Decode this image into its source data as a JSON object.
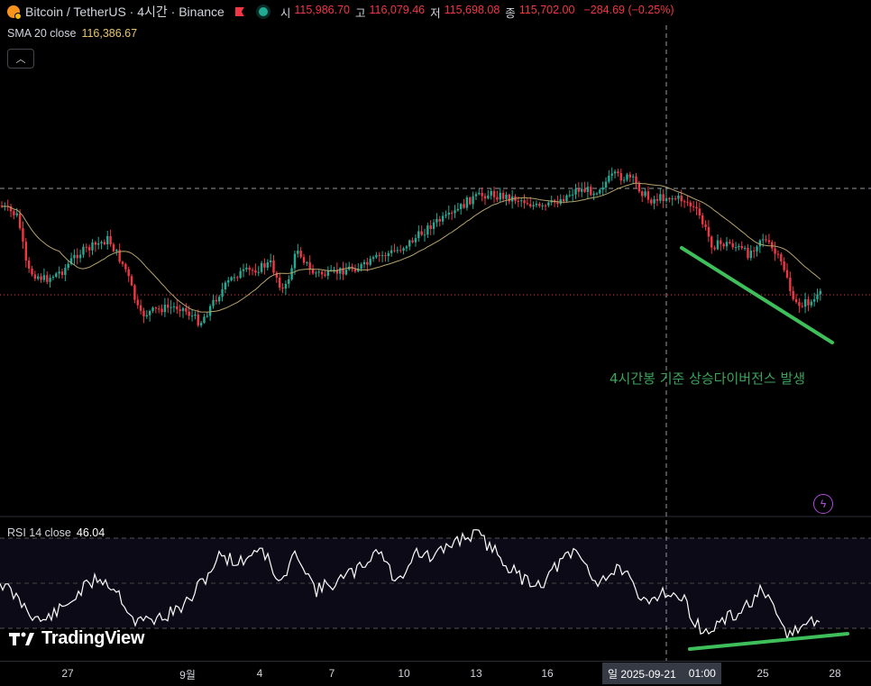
{
  "header": {
    "symbol": "Bitcoin / TetherUS · 4시간 · Binance",
    "ohlc": [
      {
        "key": "시",
        "value": "115,986.70"
      },
      {
        "key": "고",
        "value": "116,079.46"
      },
      {
        "key": "저",
        "value": "115,698.08"
      },
      {
        "key": "종",
        "value": "115,702.00"
      }
    ],
    "change": "−284.69 (−0.25%)"
  },
  "sma": {
    "label": "SMA 20 close",
    "value": "116,386.67"
  },
  "rsi": {
    "label": "RSI 14 close",
    "value": "46.04"
  },
  "annotation": "4시간봉 기준 상승다이버전스 발생",
  "brand": "TradingView",
  "xaxis": {
    "ticks": [
      "27",
      "9월",
      "4",
      "7",
      "10",
      "13",
      "16",
      "25",
      "28"
    ],
    "cursor_date": "일 2025-09-21",
    "cursor_time": "01:00"
  },
  "colors": {
    "up": "#22ab94",
    "down": "#f23645",
    "sma": "#b5a36b",
    "annotation": "#3aa45a",
    "rsi_bg": "#0c0a17"
  }
}
